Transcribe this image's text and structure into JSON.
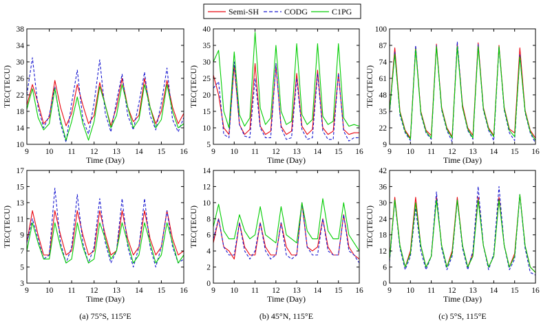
{
  "legend": {
    "entries": [
      {
        "name": "Semi-SH",
        "color": "#e8000b",
        "dash": "solid"
      },
      {
        "name": "CODG",
        "color": "#1515cf",
        "dash": "dashed"
      },
      {
        "name": "C1PG",
        "color": "#00cc00",
        "dash": "solid"
      }
    ]
  },
  "chart_data": [
    {
      "type": "line",
      "id": "p0",
      "caption": "",
      "xlabel": "Time (Day)",
      "ylabel": "TEC(TECU)",
      "xlim": [
        9,
        16
      ],
      "ylim": [
        10,
        38
      ],
      "xticks": [
        9,
        10,
        11,
        12,
        13,
        14,
        15,
        16
      ],
      "yticks": [
        10,
        14,
        18,
        22,
        26,
        30,
        34,
        38
      ],
      "x": [
        9.0,
        9.25,
        9.5,
        9.75,
        10.0,
        10.25,
        10.5,
        10.75,
        11.0,
        11.25,
        11.5,
        11.75,
        12.0,
        12.25,
        12.5,
        12.75,
        13.0,
        13.25,
        13.5,
        13.75,
        14.0,
        14.25,
        14.5,
        14.75,
        15.0,
        15.25,
        15.5,
        15.75,
        16.0
      ],
      "series": [
        {
          "name": "Semi-SH",
          "values": [
            19.5,
            24.5,
            20.0,
            15.0,
            16.5,
            25.5,
            19.0,
            14.5,
            17.5,
            24.5,
            19.5,
            15.0,
            17.0,
            25.0,
            19.5,
            14.5,
            19.0,
            26.0,
            19.0,
            15.5,
            17.0,
            26.0,
            19.0,
            15.0,
            18.0,
            25.5,
            19.0,
            15.0,
            17.5
          ]
        },
        {
          "name": "CODG",
          "values": [
            22.0,
            31.0,
            19.0,
            14.0,
            17.0,
            24.0,
            15.0,
            10.5,
            20.0,
            28.0,
            16.0,
            12.5,
            20.0,
            30.5,
            17.5,
            13.0,
            20.5,
            27.0,
            17.0,
            13.5,
            20.0,
            27.5,
            17.0,
            13.5,
            20.0,
            28.5,
            16.0,
            13.0,
            16.5
          ]
        },
        {
          "name": "C1PG",
          "values": [
            18.5,
            23.5,
            16.5,
            13.5,
            15.0,
            23.5,
            16.0,
            11.0,
            15.5,
            21.5,
            15.0,
            11.0,
            15.5,
            24.0,
            19.5,
            14.0,
            17.0,
            24.5,
            19.0,
            14.0,
            16.0,
            24.5,
            19.0,
            14.0,
            16.0,
            24.5,
            18.0,
            14.0,
            15.0
          ]
        }
      ]
    },
    {
      "type": "line",
      "id": "p1",
      "caption": "",
      "xlabel": "Time (Day)",
      "ylabel": "TEC(TECU)",
      "xlim": [
        9,
        16
      ],
      "ylim": [
        5,
        40
      ],
      "xticks": [
        9,
        10,
        11,
        12,
        13,
        14,
        15,
        16
      ],
      "yticks": [
        5,
        10,
        15,
        20,
        25,
        30,
        35,
        40
      ],
      "x": [
        9.0,
        9.25,
        9.5,
        9.75,
        10.0,
        10.25,
        10.5,
        10.75,
        11.0,
        11.25,
        11.5,
        11.75,
        12.0,
        12.25,
        12.5,
        12.75,
        13.0,
        13.25,
        13.5,
        13.75,
        14.0,
        14.25,
        14.5,
        14.75,
        15.0,
        15.25,
        15.5,
        15.75,
        16.0
      ],
      "series": [
        {
          "name": "Semi-SH",
          "values": [
            26.0,
            20.0,
            10.0,
            8.0,
            29.0,
            11.0,
            8.0,
            9.5,
            29.5,
            10.5,
            8.0,
            9.0,
            29.0,
            10.5,
            8.0,
            9.0,
            26.5,
            10.5,
            8.0,
            9.5,
            27.5,
            10.0,
            8.0,
            9.0,
            26.5,
            9.5,
            8.0,
            8.5,
            8.5
          ]
        },
        {
          "name": "CODG",
          "values": [
            22.0,
            24.0,
            8.0,
            7.0,
            30.0,
            11.0,
            7.5,
            7.0,
            25.0,
            10.0,
            7.0,
            7.0,
            29.5,
            10.0,
            6.5,
            7.0,
            25.0,
            9.5,
            6.5,
            7.0,
            26.5,
            9.0,
            6.5,
            6.5,
            26.5,
            9.0,
            6.0,
            7.0,
            7.0
          ]
        },
        {
          "name": "C1PG",
          "values": [
            30.0,
            33.5,
            15.0,
            10.0,
            33.0,
            14.0,
            10.5,
            13.0,
            39.0,
            16.0,
            11.0,
            13.0,
            35.0,
            15.0,
            11.0,
            12.0,
            35.5,
            14.0,
            11.0,
            12.5,
            35.5,
            13.5,
            11.0,
            12.0,
            35.5,
            13.0,
            10.5,
            11.0,
            10.5
          ]
        }
      ]
    },
    {
      "type": "line",
      "id": "p2",
      "caption": "",
      "xlabel": "Time (Day)",
      "ylabel": "TEC(TECU)",
      "xlim": [
        9,
        16
      ],
      "ylim": [
        9,
        100
      ],
      "xticks": [
        9,
        10,
        11,
        12,
        13,
        14,
        15,
        16
      ],
      "yticks": [
        9,
        22,
        35,
        48,
        61,
        74,
        87,
        100
      ],
      "x": [
        9.0,
        9.25,
        9.5,
        9.75,
        10.0,
        10.25,
        10.5,
        10.75,
        11.0,
        11.25,
        11.5,
        11.75,
        12.0,
        12.25,
        12.5,
        12.75,
        13.0,
        13.25,
        13.5,
        13.75,
        14.0,
        14.25,
        14.5,
        14.75,
        15.0,
        15.25,
        15.5,
        15.75,
        16.0
      ],
      "series": [
        {
          "name": "Semi-SH",
          "values": [
            35,
            85,
            35,
            20,
            14,
            86,
            35,
            20,
            16,
            88,
            38,
            22,
            15,
            88,
            40,
            22,
            16,
            89,
            38,
            22,
            16,
            87,
            38,
            21,
            18,
            85,
            36,
            20,
            14
          ]
        },
        {
          "name": "CODG",
          "values": [
            33,
            82,
            32,
            18,
            12,
            87,
            33,
            18,
            13,
            87,
            36,
            20,
            11,
            90,
            38,
            20,
            13,
            88,
            36,
            20,
            12,
            86,
            36,
            18,
            12,
            80,
            34,
            18,
            10
          ]
        },
        {
          "name": "C1PG",
          "values": [
            35,
            80,
            34,
            19,
            13,
            84,
            34,
            19,
            14,
            86,
            37,
            21,
            14,
            86,
            38,
            21,
            14,
            86,
            37,
            21,
            15,
            86,
            37,
            20,
            15,
            78,
            35,
            19,
            12
          ]
        }
      ]
    },
    {
      "type": "line",
      "id": "p3",
      "caption": "(a) 75°S, 115°E",
      "xlabel": "Time (Day)",
      "ylabel": "TEC(TECU)",
      "xlim": [
        9,
        16
      ],
      "ylim": [
        3,
        17
      ],
      "xticks": [
        9,
        10,
        11,
        12,
        13,
        14,
        15,
        16
      ],
      "yticks": [
        3,
        5,
        7,
        9,
        11,
        13,
        15,
        17
      ],
      "x": [
        9.0,
        9.25,
        9.5,
        9.75,
        10.0,
        10.25,
        10.5,
        10.75,
        11.0,
        11.25,
        11.5,
        11.75,
        12.0,
        12.25,
        12.5,
        12.75,
        13.0,
        13.25,
        13.5,
        13.75,
        14.0,
        14.25,
        14.5,
        14.75,
        15.0,
        15.25,
        15.5,
        15.75,
        16.0
      ],
      "series": [
        {
          "name": "Semi-SH",
          "values": [
            8.0,
            12.0,
            9.0,
            6.5,
            6.5,
            12.0,
            9.0,
            6.5,
            7.0,
            12.0,
            9.0,
            6.5,
            7.0,
            12.0,
            9.0,
            6.5,
            7.0,
            12.0,
            8.5,
            6.5,
            7.5,
            12.0,
            8.5,
            6.5,
            7.5,
            12.0,
            8.5,
            6.5,
            7.0
          ]
        },
        {
          "name": "CODG",
          "values": [
            8.0,
            11.0,
            8.5,
            6.0,
            6.5,
            14.8,
            8.0,
            5.5,
            7.5,
            14.0,
            8.0,
            5.5,
            7.5,
            13.5,
            8.0,
            5.5,
            7.0,
            13.5,
            7.5,
            5.0,
            7.5,
            13.5,
            7.5,
            5.0,
            7.5,
            12.0,
            7.5,
            5.5,
            6.0
          ]
        },
        {
          "name": "C1PG",
          "values": [
            7.0,
            10.5,
            8.0,
            6.0,
            6.0,
            10.5,
            7.5,
            5.5,
            6.0,
            10.5,
            7.5,
            5.5,
            6.0,
            10.5,
            8.5,
            6.0,
            7.0,
            10.5,
            8.0,
            5.5,
            6.5,
            10.5,
            8.0,
            5.5,
            6.5,
            10.5,
            8.0,
            5.5,
            6.5
          ]
        }
      ]
    },
    {
      "type": "line",
      "id": "p4",
      "caption": "(b) 45°N, 115°E",
      "xlabel": "Time (Day)",
      "ylabel": "TEC(TECU)",
      "xlim": [
        9,
        16
      ],
      "ylim": [
        0,
        14
      ],
      "xticks": [
        9,
        10,
        11,
        12,
        13,
        14,
        15,
        16
      ],
      "yticks": [
        0,
        2,
        4,
        6,
        8,
        10,
        12,
        14
      ],
      "x": [
        9.0,
        9.25,
        9.5,
        9.75,
        10.0,
        10.25,
        10.5,
        10.75,
        11.0,
        11.25,
        11.5,
        11.75,
        12.0,
        12.25,
        12.5,
        12.75,
        13.0,
        13.25,
        13.5,
        13.75,
        14.0,
        14.25,
        14.5,
        14.75,
        15.0,
        15.25,
        15.5,
        15.75,
        16.0
      ],
      "series": [
        {
          "name": "Semi-SH",
          "values": [
            5.0,
            8.0,
            4.5,
            4.0,
            3.0,
            7.5,
            4.5,
            3.5,
            3.5,
            7.5,
            4.5,
            3.5,
            3.5,
            7.5,
            4.5,
            3.5,
            3.5,
            10.0,
            4.5,
            4.0,
            4.5,
            8.0,
            4.5,
            3.5,
            3.5,
            8.5,
            4.5,
            3.5,
            3.0
          ]
        },
        {
          "name": "CODG",
          "values": [
            5.5,
            8.0,
            4.5,
            3.5,
            3.5,
            7.5,
            4.0,
            3.0,
            4.0,
            7.5,
            4.0,
            3.0,
            3.5,
            7.5,
            3.5,
            3.0,
            3.5,
            10.0,
            4.5,
            3.5,
            3.5,
            8.0,
            4.0,
            3.5,
            3.5,
            8.5,
            4.0,
            3.5,
            2.5
          ]
        },
        {
          "name": "C1PG",
          "values": [
            7.0,
            9.8,
            6.5,
            5.5,
            5.5,
            8.5,
            6.5,
            5.5,
            6.0,
            9.5,
            6.0,
            5.5,
            5.0,
            9.5,
            6.0,
            5.5,
            5.0,
            10.0,
            6.5,
            5.5,
            5.5,
            10.5,
            6.5,
            5.5,
            5.5,
            10.0,
            6.0,
            5.0,
            4.0
          ]
        }
      ]
    },
    {
      "type": "line",
      "id": "p5",
      "caption": "(c) 5°S, 115°E",
      "xlabel": "Time (Day)",
      "ylabel": "TEC(TECU)",
      "xlim": [
        9,
        16
      ],
      "ylim": [
        0,
        42
      ],
      "xticks": [
        9,
        10,
        11,
        12,
        13,
        14,
        15,
        16
      ],
      "yticks": [
        0,
        6,
        12,
        18,
        24,
        30,
        36,
        42
      ],
      "x": [
        9.0,
        9.25,
        9.5,
        9.75,
        10.0,
        10.25,
        10.5,
        10.75,
        11.0,
        11.25,
        11.5,
        11.75,
        12.0,
        12.25,
        12.5,
        12.75,
        13.0,
        13.25,
        13.5,
        13.75,
        14.0,
        14.25,
        14.5,
        14.75,
        15.0,
        15.25,
        15.5,
        15.75,
        16.0
      ],
      "series": [
        {
          "name": "Semi-SH",
          "values": [
            9,
            32,
            14,
            6,
            12,
            32,
            14,
            6,
            10,
            32,
            14,
            6,
            12,
            32,
            14,
            6,
            11,
            32,
            14,
            6,
            10,
            32,
            14,
            6,
            11,
            33,
            14,
            6,
            4
          ]
        },
        {
          "name": "CODG",
          "values": [
            8,
            31,
            13,
            5,
            10,
            28,
            12,
            5,
            10,
            34,
            13,
            5,
            10,
            31,
            13,
            5,
            12,
            36,
            14,
            5,
            11,
            36,
            14,
            5,
            9,
            33,
            13,
            4,
            3
          ]
        },
        {
          "name": "C1PG",
          "values": [
            9,
            31,
            14,
            6,
            11,
            30,
            14,
            6,
            10,
            31,
            14,
            6,
            11,
            31,
            14,
            6,
            10,
            31,
            14,
            6,
            10,
            31,
            14,
            6,
            10,
            33,
            14,
            6,
            4
          ]
        }
      ]
    }
  ]
}
